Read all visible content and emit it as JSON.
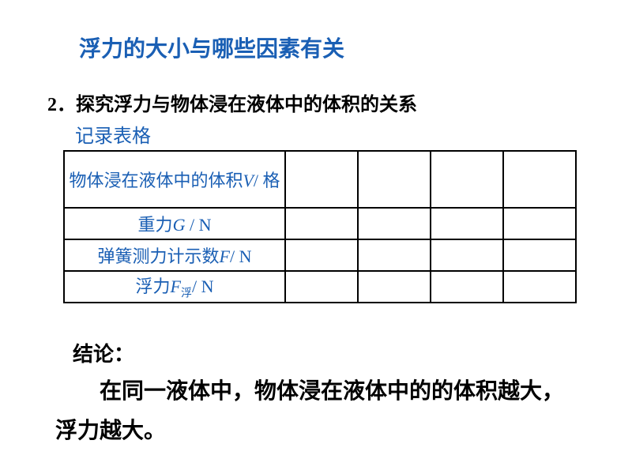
{
  "title": "浮力的大小与哪些因素有关",
  "section_number": "2．探究浮力与物体浸在液体中的体积的关系",
  "subtitle": "记录表格",
  "table": {
    "rows": [
      {
        "label_pre": "物体浸在液体中的体积",
        "var": "V",
        "label_post": "/ 格",
        "tall": true
      },
      {
        "label_pre": "重力",
        "var": "G",
        "label_post": " / N",
        "tall": false
      },
      {
        "label_pre": "弹簧测力计示数",
        "var": "F",
        "label_post": "/ N",
        "tall": false
      },
      {
        "label_pre": "浮力",
        "var": "F",
        "sub": "浮",
        "label_post": "/ N",
        "tall": false
      }
    ],
    "data_cols": 4
  },
  "conclusion_label": "结论：",
  "conclusion_text": "在同一液体中，物体浸在液体中的的体积越大，浮力越大。",
  "colors": {
    "title_blue": "#1a5fb4",
    "text_black": "#000000",
    "border": "#000000",
    "bg": "#ffffff"
  }
}
